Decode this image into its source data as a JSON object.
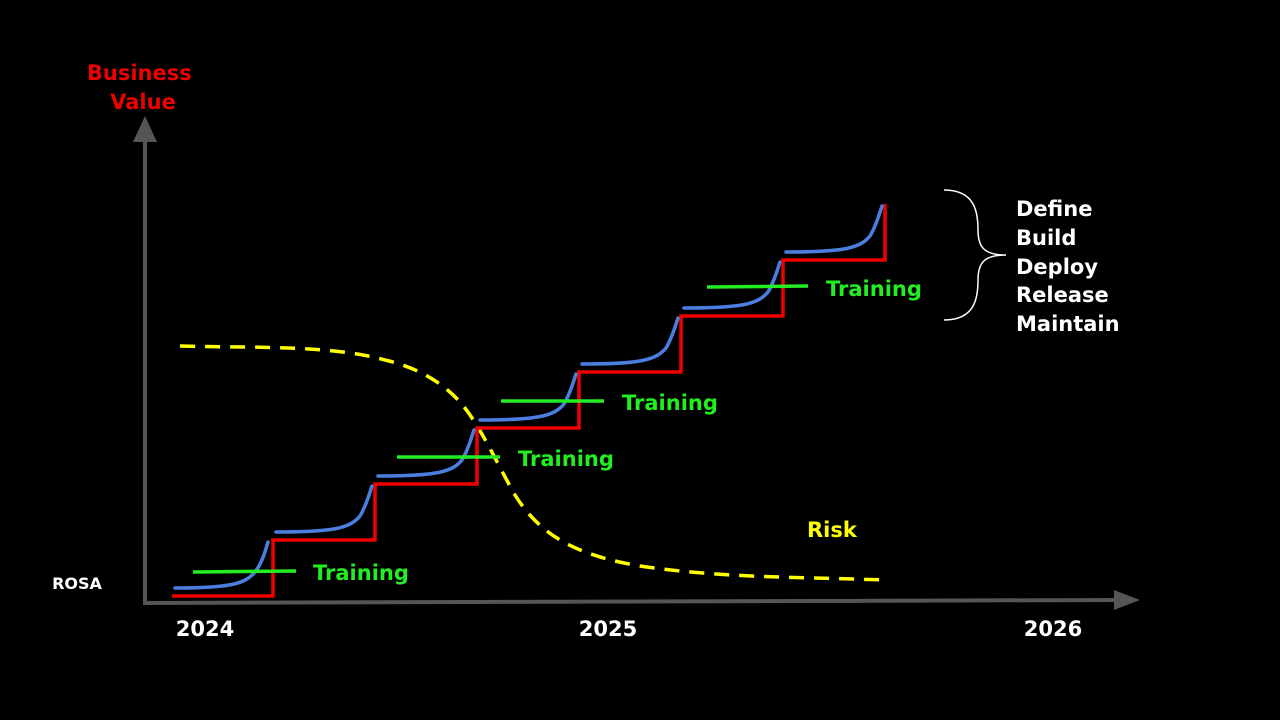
{
  "y_axis_label": [
    "Business",
    "Value"
  ],
  "baseline_label": "ROSA",
  "x_ticks": [
    "2024",
    "2025",
    "2026"
  ],
  "training_label": "Training",
  "risk_label": "Risk",
  "phases": [
    "Define",
    "Build",
    "Deploy",
    "Release",
    "Maintain"
  ],
  "colors": {
    "background": "#000000",
    "axis": "#555555",
    "y_label": "#ee0000",
    "step": "#ee0000",
    "curve": "#4a7fe0",
    "training": "#22ee22",
    "risk": "#ffff00",
    "text": "#ffffff"
  }
}
